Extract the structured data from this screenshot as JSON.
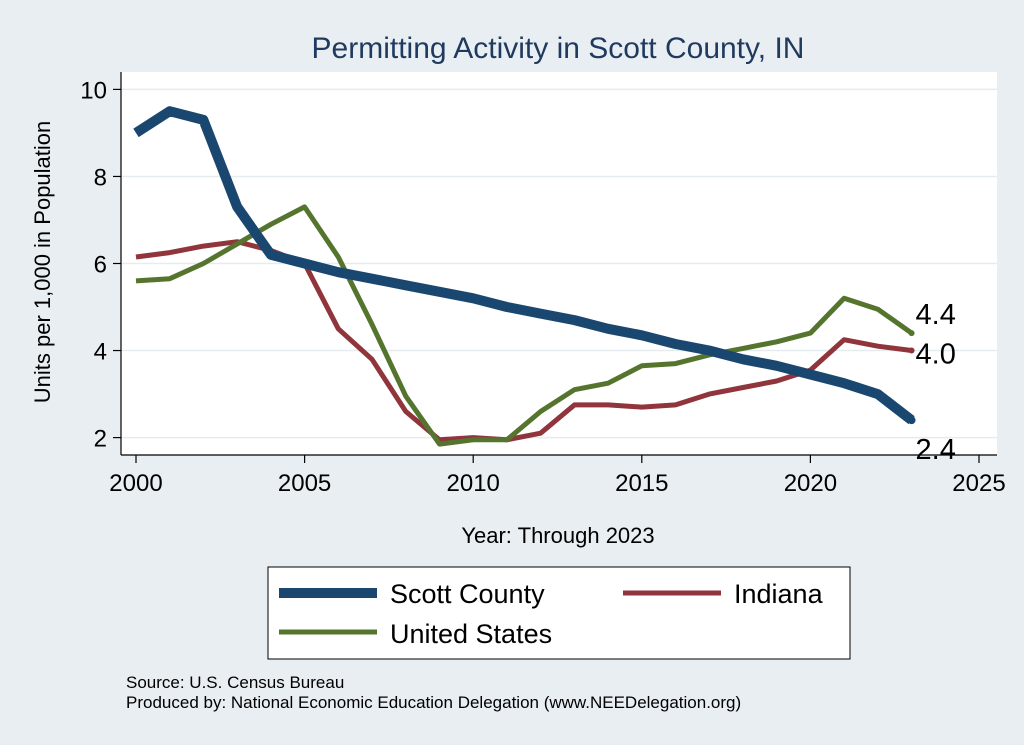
{
  "chart_data": {
    "type": "line",
    "title": "Permitting Activity in Scott County, IN",
    "xlabel": "Year: Through 2023",
    "ylabel": "Units per 1,000 in Population",
    "xlim": [
      2000,
      2025
    ],
    "ylim": [
      1.6,
      10.4
    ],
    "xticks": [
      2000,
      2005,
      2010,
      2015,
      2020,
      2025
    ],
    "yticks": [
      2,
      4,
      6,
      8,
      10
    ],
    "grid": true,
    "legend_position": "bottom",
    "series": [
      {
        "name": "Scott County",
        "color": "#1a476f",
        "x": [
          2000,
          2001,
          2002,
          2003,
          2004,
          2005,
          2006,
          2007,
          2008,
          2009,
          2010,
          2011,
          2012,
          2013,
          2014,
          2015,
          2016,
          2017,
          2018,
          2019,
          2020,
          2021,
          2022,
          2023
        ],
        "values": [
          9.0,
          9.5,
          9.3,
          7.3,
          6.2,
          6.0,
          5.8,
          5.65,
          5.5,
          5.35,
          5.2,
          5.0,
          4.85,
          4.7,
          4.5,
          4.35,
          4.15,
          4.0,
          3.8,
          3.65,
          3.45,
          3.25,
          3.0,
          2.4
        ],
        "end_label": "2.4"
      },
      {
        "name": "Indiana",
        "color": "#90353b",
        "x": [
          2000,
          2001,
          2002,
          2003,
          2004,
          2005,
          2006,
          2007,
          2008,
          2009,
          2010,
          2011,
          2012,
          2013,
          2014,
          2015,
          2016,
          2017,
          2018,
          2019,
          2020,
          2021,
          2022,
          2023
        ],
        "values": [
          6.15,
          6.25,
          6.4,
          6.5,
          6.3,
          6.0,
          4.5,
          3.8,
          2.6,
          1.95,
          2.0,
          1.95,
          2.1,
          2.75,
          2.75,
          2.7,
          2.75,
          3.0,
          3.15,
          3.3,
          3.55,
          4.25,
          4.1,
          4.0
        ],
        "end_label": "4.0"
      },
      {
        "name": "United States",
        "color": "#55752f",
        "x": [
          2000,
          2001,
          2002,
          2003,
          2004,
          2005,
          2006,
          2007,
          2008,
          2009,
          2010,
          2011,
          2012,
          2013,
          2014,
          2015,
          2016,
          2017,
          2018,
          2019,
          2020,
          2021,
          2022,
          2023
        ],
        "values": [
          5.6,
          5.65,
          6.0,
          6.45,
          6.9,
          7.3,
          6.15,
          4.6,
          2.95,
          1.85,
          1.95,
          1.95,
          2.6,
          3.1,
          3.25,
          3.65,
          3.7,
          3.9,
          4.05,
          4.2,
          4.4,
          5.2,
          4.95,
          4.4
        ],
        "end_label": "4.4"
      }
    ],
    "source_note": "Source: U.S. Census Bureau",
    "producer_note": "Produced by: National Economic Education Delegation (www.NEEDelegation.org)"
  }
}
